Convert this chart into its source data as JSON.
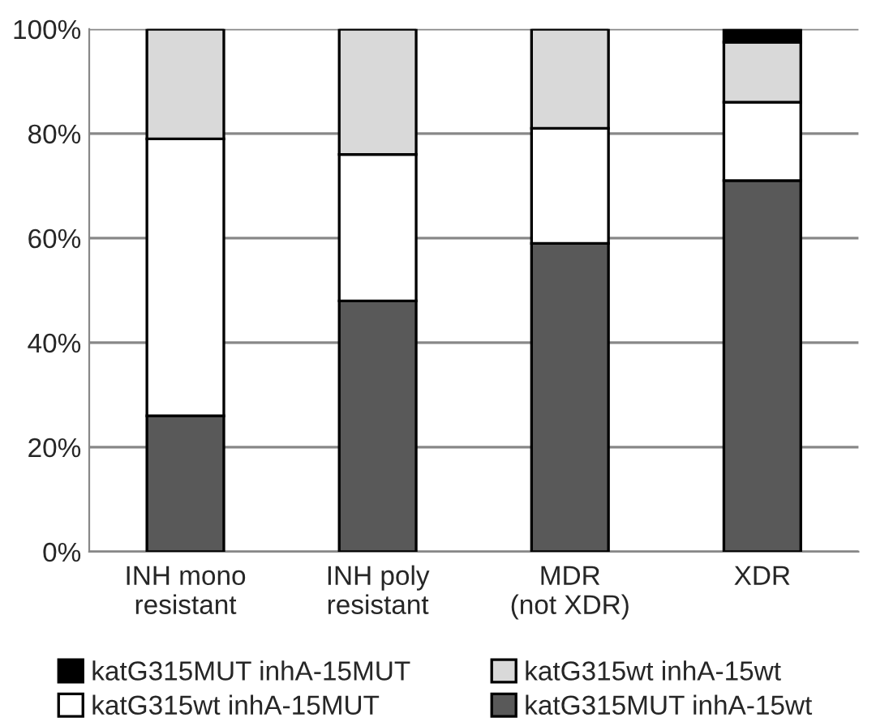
{
  "chart_data": {
    "type": "bar",
    "stacked": true,
    "categories": [
      "INH mono\nresistant",
      "INH poly\nresistant",
      "MDR\n(not XDR)",
      "XDR"
    ],
    "series": [
      {
        "name": "katG315MUT inhA-15wt",
        "color": "#595959",
        "values": [
          26,
          48,
          59,
          71
        ]
      },
      {
        "name": "katG315wt inhA-15MUT",
        "color": "#ffffff",
        "values": [
          53,
          28,
          22,
          15
        ]
      },
      {
        "name": "katG315wt inhA-15wt",
        "color": "#d9d9d9",
        "values": [
          21,
          24,
          19,
          11.5
        ]
      },
      {
        "name": "katG315MUT inhA-15MUT",
        "color": "#000000",
        "values": [
          0,
          0,
          0,
          2.5
        ]
      }
    ],
    "ylim": [
      0,
      100
    ],
    "yticks": [
      {
        "value": 0,
        "label": "0%"
      },
      {
        "value": 20,
        "label": "20%"
      },
      {
        "value": 40,
        "label": "40%"
      },
      {
        "value": 60,
        "label": "60%"
      },
      {
        "value": 80,
        "label": "80%"
      },
      {
        "value": 100,
        "label": "100%"
      }
    ],
    "grid": "y",
    "legend": "bottom"
  }
}
